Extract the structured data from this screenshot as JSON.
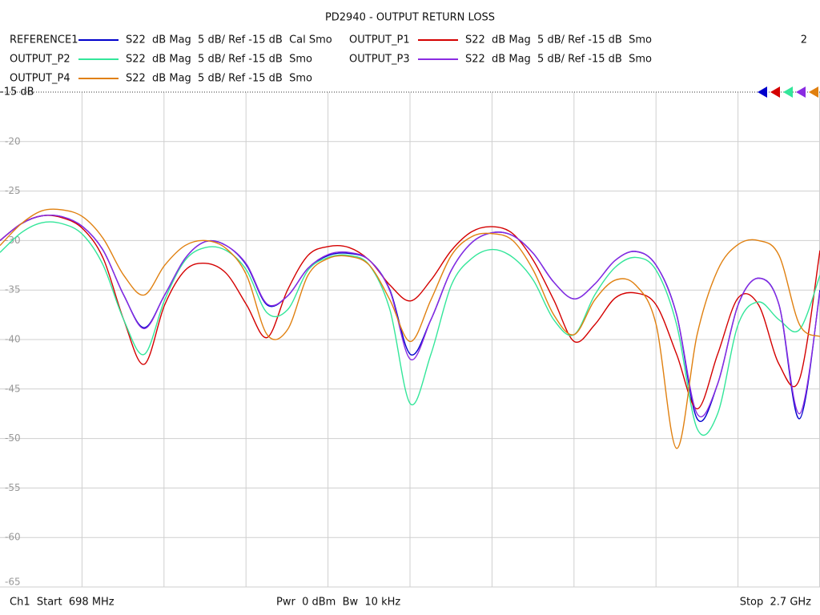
{
  "chart_data": {
    "type": "line",
    "title": "PD2940 - OUTPUT RETURN LOSS",
    "annotation": "2",
    "start_label": "Ch1  Start  698 MHz",
    "power_label": "Pwr  0 dBm  Bw  10 kHz",
    "stop_label": "Stop  2.7 GHz",
    "xlim": [
      698,
      2700
    ],
    "xticks": [
      898.2,
      1098.4,
      1298.6,
      1498.8,
      1699,
      1899.2,
      2099.4,
      2299.6,
      2499.8
    ],
    "ylim": [
      -65,
      -15
    ],
    "yticks": [
      {
        "value": -15,
        "label": "-15 dB"
      },
      -20,
      -25,
      -30,
      -35,
      -40,
      -45,
      -50,
      -55,
      -60,
      -65
    ],
    "grid": true,
    "x": [
      698,
      750,
      800,
      850,
      900,
      950,
      1000,
      1050,
      1100,
      1150,
      1200,
      1250,
      1300,
      1350,
      1400,
      1450,
      1500,
      1550,
      1600,
      1650,
      1700,
      1750,
      1800,
      1850,
      1900,
      1950,
      2000,
      2050,
      2100,
      2150,
      2200,
      2250,
      2300,
      2350,
      2400,
      2450,
      2500,
      2550,
      2600,
      2650,
      2700
    ],
    "series": [
      {
        "name": "REFERENCE1",
        "description": "S22  dB Mag  5 dB/ Ref -15 dB  Cal Smo",
        "color": "#0000cc",
        "values": [
          -30.0,
          -28.3,
          -27.5,
          -27.6,
          -28.6,
          -31.0,
          -35.5,
          -38.8,
          -35.5,
          -31.8,
          -30.1,
          -30.5,
          -32.5,
          -36.5,
          -35.6,
          -32.8,
          -31.5,
          -31.3,
          -32.0,
          -35.0,
          -41.5,
          -38.0,
          -33.0,
          -30.2,
          -29.2,
          -29.5,
          -31.3,
          -34.2,
          -35.9,
          -34.4,
          -32.0,
          -31.1,
          -32.5,
          -37.5,
          -48.0,
          -44.5,
          -36.5,
          -33.8,
          -36.5,
          -48.0,
          -35.0
        ]
      },
      {
        "name": "OUTPUT_P1",
        "description": "S22  dB Mag  5 dB/ Ref -15 dB  Smo",
        "color": "#d40000",
        "values": [
          -30.0,
          -28.3,
          -27.5,
          -27.7,
          -28.8,
          -31.8,
          -38.0,
          -42.5,
          -36.5,
          -33.0,
          -32.3,
          -33.3,
          -36.5,
          -39.8,
          -35.0,
          -31.5,
          -30.6,
          -30.7,
          -32.0,
          -34.5,
          -36.1,
          -34.0,
          -31.0,
          -29.1,
          -28.6,
          -29.3,
          -32.0,
          -36.0,
          -40.2,
          -38.5,
          -35.8,
          -35.3,
          -36.5,
          -41.5,
          -47.0,
          -41.5,
          -35.8,
          -36.5,
          -42.5,
          -44.0,
          -31.0
        ]
      },
      {
        "name": "OUTPUT_P2",
        "description": "S22  dB Mag  5 dB/ Ref -15 dB  Smo",
        "color": "#33e69a",
        "values": [
          -31.2,
          -29.2,
          -28.2,
          -28.3,
          -29.4,
          -32.5,
          -38.0,
          -41.5,
          -36.0,
          -32.0,
          -30.7,
          -31.0,
          -33.0,
          -37.3,
          -37.0,
          -33.0,
          -31.7,
          -31.5,
          -32.5,
          -37.0,
          -46.5,
          -41.5,
          -34.5,
          -31.8,
          -30.9,
          -31.7,
          -34.0,
          -38.0,
          -39.5,
          -35.5,
          -32.7,
          -31.7,
          -33.0,
          -38.5,
          -49.0,
          -47.5,
          -38.5,
          -36.2,
          -38.0,
          -39.0,
          -33.5
        ]
      },
      {
        "name": "OUTPUT_P3",
        "description": "S22  dB Mag  5 dB/ Ref -15 dB  Smo",
        "color": "#8a2be2",
        "values": [
          -30.0,
          -28.3,
          -27.5,
          -27.6,
          -28.6,
          -31.0,
          -35.5,
          -38.9,
          -35.5,
          -31.8,
          -30.1,
          -30.5,
          -32.4,
          -36.4,
          -35.6,
          -32.8,
          -31.4,
          -31.2,
          -32.0,
          -35.1,
          -42.0,
          -38.0,
          -33.0,
          -30.2,
          -29.2,
          -29.5,
          -31.3,
          -34.2,
          -35.9,
          -34.4,
          -32.0,
          -31.1,
          -32.5,
          -37.5,
          -47.5,
          -44.5,
          -36.5,
          -33.8,
          -36.5,
          -47.5,
          -35.2
        ]
      },
      {
        "name": "OUTPUT_P4",
        "description": "S22  dB Mag  5 dB/ Ref -15 dB  Smo",
        "color": "#e08010",
        "values": [
          -30.5,
          -28.3,
          -27.0,
          -26.9,
          -27.6,
          -29.8,
          -33.5,
          -35.5,
          -32.5,
          -30.5,
          -30.0,
          -30.8,
          -33.5,
          -39.5,
          -39.0,
          -33.5,
          -31.8,
          -31.6,
          -32.5,
          -36.0,
          -40.2,
          -36.0,
          -31.5,
          -29.6,
          -29.3,
          -30.0,
          -33.0,
          -37.5,
          -39.5,
          -36.0,
          -34.0,
          -34.5,
          -38.5,
          -51.0,
          -39.5,
          -33.0,
          -30.4,
          -30.0,
          -31.5,
          -38.5,
          -39.7
        ]
      }
    ]
  }
}
